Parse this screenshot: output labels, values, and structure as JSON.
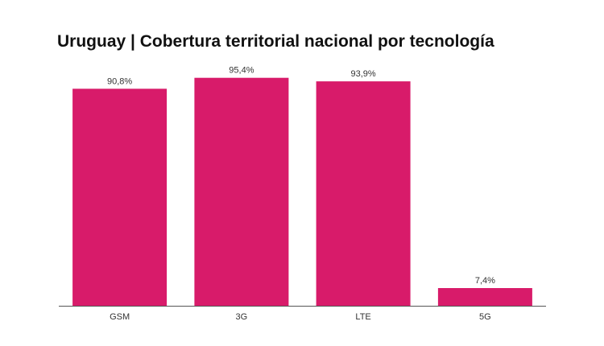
{
  "title": "Uruguay | Cobertura territorial nacional por tecnología",
  "chart_data": {
    "type": "bar",
    "title": "Uruguay | Cobertura territorial nacional por tecnología",
    "categories": [
      "GSM",
      "3G",
      "LTE",
      "5G"
    ],
    "values": [
      90.8,
      95.4,
      93.9,
      7.4
    ],
    "data_labels": [
      "90,8%",
      "95,4%",
      "93,9%",
      "7,4%"
    ],
    "xlabel": "",
    "ylabel": "",
    "ylim": [
      0,
      100
    ],
    "grid": false,
    "legend": "none",
    "bar_color": "#d81b6a",
    "axis_color": "#555555"
  }
}
